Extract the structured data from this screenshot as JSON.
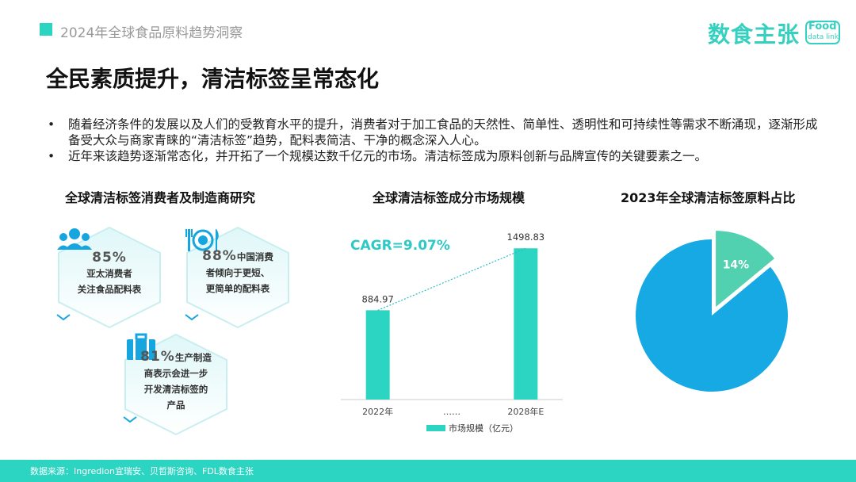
{
  "header": {
    "label": "2024年全球食品原料趋势洞察"
  },
  "brand": {
    "name": "数食主张",
    "badge": "Food",
    "badge_sub": "data link"
  },
  "title": "全民素质提升，清洁标签呈常态化",
  "bullets": [
    {
      "marker": "•",
      "text": "随着经济条件的发展以及人们的受教育水平的提升，消费者对于加工食品的天然性、简单性、透明性和可持续性等需求不断涌现，逐渐形成备受大众与商家青睐的“清洁标签”趋势，配料表简洁、干净的概念深入人心。"
    },
    {
      "marker": "•",
      "text": "近年来该趋势逐渐常态化，并开拓了一个规模达数千亿元的市场。清洁标签成为原料创新与品牌宣传的关键要素之一。"
    }
  ],
  "research": {
    "title": "全球清洁标签消费者及制造商研究",
    "items": [
      {
        "pct": "85%",
        "line1": "亚太消费者",
        "line2": "关注食品配料表",
        "line3": "",
        "icon": "people-icon"
      },
      {
        "pct": "88%",
        "line1": "中国消费",
        "line2": "者倾向于更短、",
        "line3": "更简单的配料表",
        "icon": "utensils-icon"
      },
      {
        "pct": "81%",
        "line1": "生产制造",
        "line2": "商表示会进一步",
        "line3": "开发清洁标签的",
        "line4": "产品",
        "icon": "briefcase-icon"
      }
    ]
  },
  "chart_data": [
    {
      "type": "bar",
      "title": "全球清洁标签成分市场规模",
      "categories": [
        "2022年",
        "……",
        "2028年E"
      ],
      "values": [
        884.97,
        null,
        1498.83
      ],
      "value_labels": [
        "884.97",
        "",
        "1498.83"
      ],
      "annotation": "CAGR=9.07%",
      "legend": [
        "市场规模（亿元）"
      ],
      "ylim": [
        0,
        1650
      ],
      "color": "#2cd4c2"
    },
    {
      "type": "pie",
      "title": "2023年全球清洁标签原料占比",
      "slices": [
        {
          "label": "14%",
          "value": 14,
          "color": "#52d1b0"
        },
        {
          "label": "",
          "value": 86,
          "color": "#16a9e3"
        }
      ]
    }
  ],
  "footer": {
    "source": "数据来源：Ingredion宜瑞安、贝哲斯咨询、FDL数食主张"
  }
}
